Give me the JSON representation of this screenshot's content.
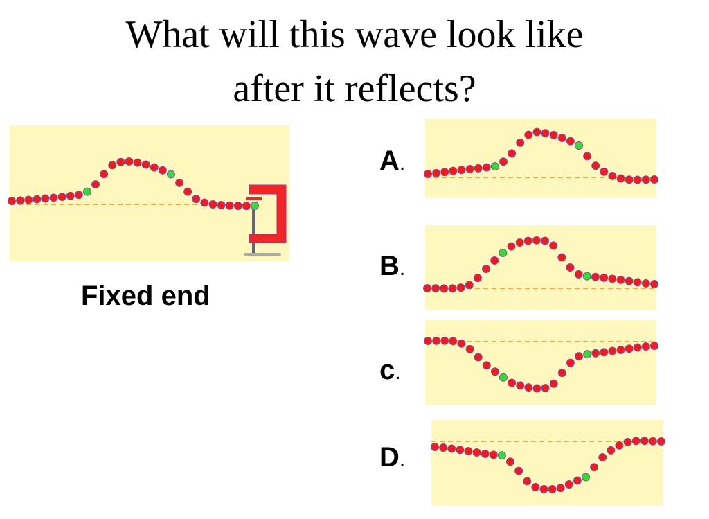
{
  "title_lines": [
    "What will this wave look like",
    "after it reflects?"
  ],
  "main_panel": {
    "label": "Fixed end"
  },
  "options": [
    {
      "letter": "A",
      "dot": "."
    },
    {
      "letter": "B",
      "dot": "."
    },
    {
      "letter": "c",
      "dot": "."
    },
    {
      "letter": "D",
      "dot": "."
    }
  ],
  "colors": {
    "panel_bg": "#fef8bf",
    "bead": "#ee1c1c",
    "bead_marker": "#33dd33",
    "equilibrium_line": "#f7a84a",
    "clamp": "#f02525"
  }
}
